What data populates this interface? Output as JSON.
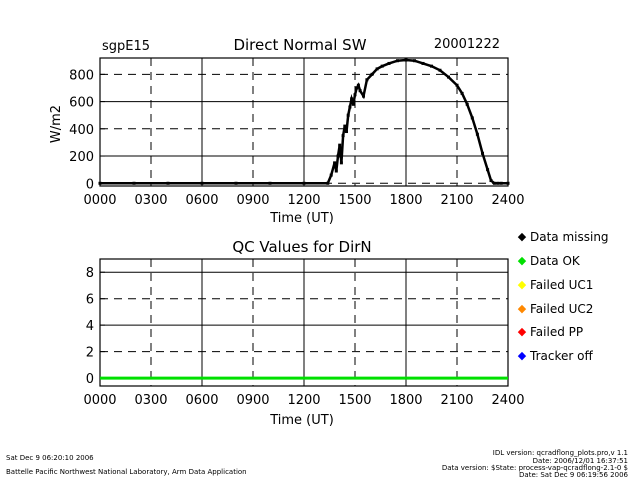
{
  "chart_data": [
    {
      "type": "scatter",
      "title": "Direct Normal SW",
      "site": "sgpE15",
      "date": "20001222",
      "xlabel": "Time (UT)",
      "ylabel": "W/m2",
      "xlim": [
        0,
        24
      ],
      "ylim": [
        -20,
        920
      ],
      "x_ticks": [
        "0000",
        "0300",
        "0600",
        "0900",
        "1200",
        "1500",
        "1800",
        "2100",
        "2400"
      ],
      "y_ticks": [
        "0",
        "200",
        "400",
        "600",
        "800"
      ],
      "grid": true,
      "series": [
        {
          "color": "#000000",
          "x": [
            0,
            2,
            4,
            6,
            8,
            10,
            12,
            13.4,
            13.6,
            13.8,
            13.9,
            14.0,
            14.1,
            14.2,
            14.3,
            14.4,
            14.5,
            14.6,
            14.7,
            14.8,
            14.9,
            15.0,
            15.1,
            15.2,
            15.3,
            15.5,
            15.7,
            16.0,
            16.3,
            16.6,
            17.0,
            17.5,
            18.0,
            18.5,
            19.0,
            19.5,
            20.0,
            20.5,
            21.0,
            21.3,
            21.6,
            21.9,
            22.2,
            22.5,
            22.8,
            23.0,
            23.2,
            23.4,
            23.6,
            24.0
          ],
          "y": [
            0,
            0,
            0,
            0,
            0,
            0,
            0,
            0,
            60,
            150,
            90,
            200,
            280,
            150,
            350,
            420,
            380,
            500,
            560,
            620,
            580,
            650,
            700,
            720,
            680,
            640,
            760,
            800,
            840,
            860,
            880,
            900,
            905,
            900,
            880,
            860,
            830,
            780,
            720,
            660,
            580,
            480,
            360,
            220,
            100,
            20,
            0,
            0,
            0,
            0
          ]
        }
      ]
    },
    {
      "type": "line",
      "title": "QC Values for DirN",
      "xlabel": "Time (UT)",
      "xlim": [
        0,
        24
      ],
      "ylim": [
        -0.6,
        9
      ],
      "x_ticks": [
        "0000",
        "0300",
        "0600",
        "0900",
        "1200",
        "1500",
        "1800",
        "2100",
        "2400"
      ],
      "y_ticks": [
        "0",
        "2",
        "4",
        "6",
        "8"
      ],
      "grid": true,
      "series": [
        {
          "name": "Data OK",
          "color": "#00e000",
          "x": [
            0,
            24
          ],
          "y": [
            0,
            0
          ]
        }
      ]
    }
  ],
  "legend": [
    {
      "label": "Data missing",
      "color": "#000000"
    },
    {
      "label": "Data OK",
      "color": "#00e000"
    },
    {
      "label": "Failed UC1",
      "color": "#ffff00"
    },
    {
      "label": "Failed UC2",
      "color": "#ff8800"
    },
    {
      "label": "Failed PP",
      "color": "#ff0000"
    },
    {
      "label": "Tracker off",
      "color": "#0000ff"
    }
  ],
  "footer": {
    "left_line1": "Sat Dec  9 06:20:10 2006",
    "left_line2": "Battelle Pacific Northwest National Laboratory, Arm Data Application",
    "right_line1": "IDL version: qcradflong_plots.pro,v 1.1",
    "right_line2": "Date: 2006/12/01 16:37:51",
    "right_line3": "Data version: $State: process-vap-qcradflong-2.1-0 $",
    "right_line4": "Date: Sat Dec  9 06:19:56 2006"
  }
}
